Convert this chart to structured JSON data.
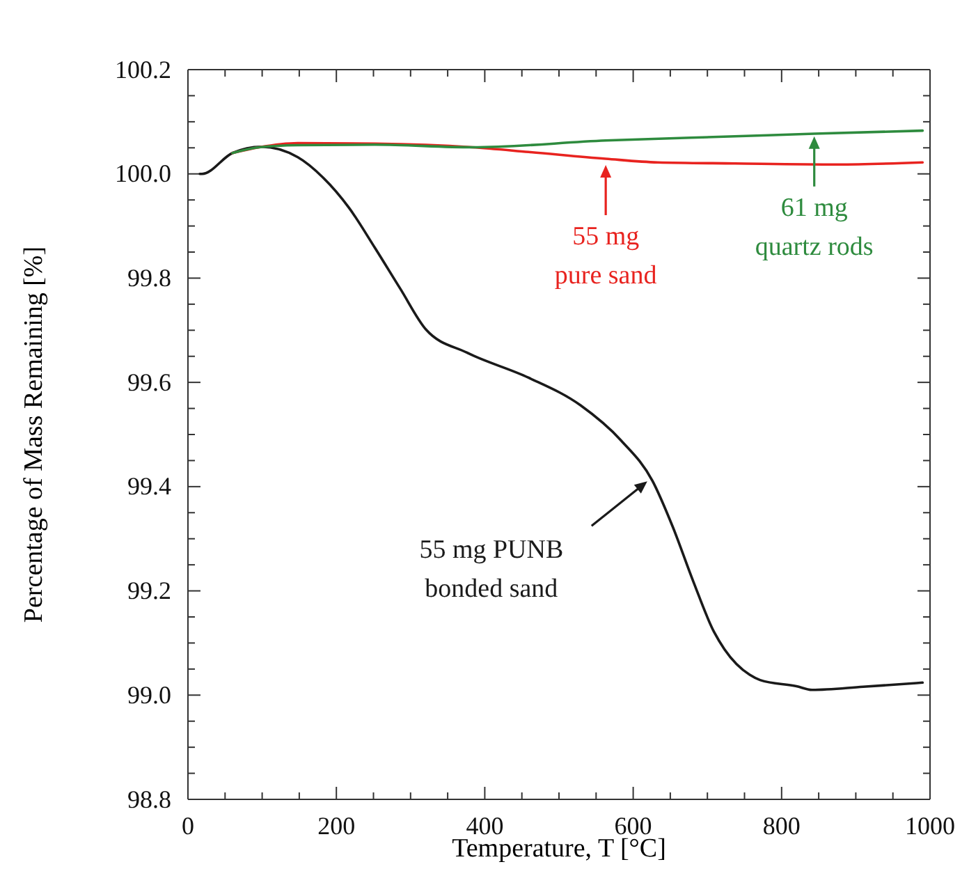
{
  "chart_data": {
    "type": "line",
    "xlabel": "Temperature, T [°C]",
    "ylabel": "Percentage of Mass Remaining [%]",
    "xlim": [
      0,
      1000
    ],
    "ylim": [
      98.8,
      100.2
    ],
    "xticks": [
      0,
      200,
      400,
      600,
      800,
      1000,
      {
        "value": 50,
        "label": null
      },
      {
        "value": 100,
        "label": null
      },
      {
        "value": 150,
        "label": null
      },
      {
        "value": 250,
        "label": null
      },
      {
        "value": 300,
        "label": null
      },
      {
        "value": 350,
        "label": null
      },
      {
        "value": 450,
        "label": null
      },
      {
        "value": 500,
        "label": null
      },
      {
        "value": 550,
        "label": null
      },
      {
        "value": 650,
        "label": null
      },
      {
        "value": 700,
        "label": null
      },
      {
        "value": 750,
        "label": null
      },
      {
        "value": 850,
        "label": null
      },
      {
        "value": 900,
        "label": null
      },
      {
        "value": 950,
        "label": null
      }
    ],
    "yticks": [
      98.8,
      {
        "value": 99,
        "label": "99.0"
      },
      99.2,
      99.4,
      99.6,
      99.8,
      {
        "value": 100,
        "label": "100.0"
      },
      100.2,
      {
        "value": 98.85,
        "label": null
      },
      {
        "value": 98.9,
        "label": null
      },
      {
        "value": 98.95,
        "label": null
      },
      {
        "value": 99.05,
        "label": null
      },
      {
        "value": 99.1,
        "label": null
      },
      {
        "value": 99.15,
        "label": null
      },
      {
        "value": 99.25,
        "label": null
      },
      {
        "value": 99.3,
        "label": null
      },
      {
        "value": 99.35,
        "label": null
      },
      {
        "value": 99.45,
        "label": null
      },
      {
        "value": 99.5,
        "label": null
      },
      {
        "value": 99.55,
        "label": null
      },
      {
        "value": 99.65,
        "label": null
      },
      {
        "value": 99.7,
        "label": null
      },
      {
        "value": 99.75,
        "label": null
      },
      {
        "value": 99.85,
        "label": null
      },
      {
        "value": 99.9,
        "label": null
      },
      {
        "value": 99.95,
        "label": null
      },
      {
        "value": 100.05,
        "label": null
      },
      {
        "value": 100.1,
        "label": null
      },
      {
        "value": 100.15,
        "label": null
      }
    ],
    "grid": false,
    "marker": "none",
    "line_style": "solid",
    "series": [
      {
        "color": "#1a1a1a",
        "x": [
          16,
          19,
          60,
          99,
          148,
          182,
          217,
          252,
          286,
          321,
          376,
          459,
          529,
          584,
          626,
          653,
          681,
          709,
          723,
          757,
          771,
          820,
          841,
          910,
          990
        ],
        "values": [
          100.0,
          100.0,
          100.04,
          100.052,
          100.032,
          99.993,
          99.935,
          99.858,
          99.78,
          99.701,
          99.657,
          99.609,
          99.556,
          99.488,
          99.411,
          99.324,
          99.218,
          99.121,
          99.088,
          99.039,
          99.029,
          99.017,
          99.01,
          99.016,
          99.024
        ]
      },
      {
        "color": "#e8231f",
        "x": [
          60,
          96,
          148,
          252,
          383,
          459,
          563,
          633,
          737,
          875,
          990
        ],
        "values": [
          100.04,
          100.051,
          100.059,
          100.058,
          100.051,
          100.042,
          100.029,
          100.022,
          100.02,
          100.018,
          100.022
        ]
      },
      {
        "color": "#2e8b3e",
        "x": [
          60,
          96,
          148,
          252,
          383,
          563,
          737,
          844,
          990
        ],
        "values": [
          100.04,
          100.051,
          100.055,
          100.056,
          100.051,
          100.064,
          100.072,
          100.077,
          100.083
        ]
      }
    ],
    "annotations": [
      {
        "text": "55 mg PUNB\nbonded sand",
        "x": 619,
        "y": 99.41
      },
      {
        "text": "55 mg\npure sand",
        "x": 563,
        "y": 100.017
      },
      {
        "text": "61 mg\nquartz rods",
        "x": 844,
        "y": 100.072
      }
    ]
  }
}
